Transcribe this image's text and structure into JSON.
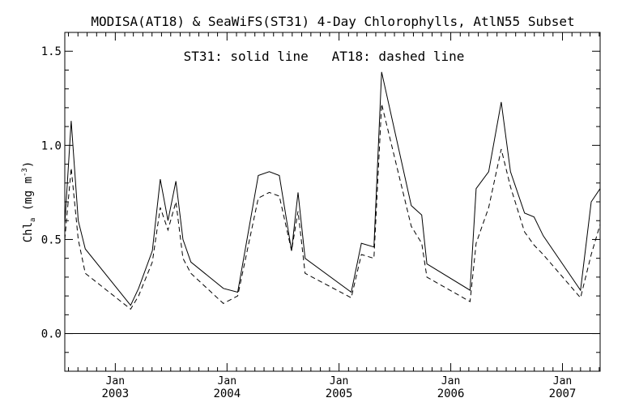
{
  "chart_data": {
    "type": "line",
    "title": "MODISA(AT18) & SeaWiFS(ST31) 4-Day Chlorophylls, AtlN55 Subset",
    "annotation": "ST31: solid line   AT18: dashed line",
    "ylabel": {
      "main": "Chl",
      "sub": "a",
      "unit_pre": "(mg m",
      "unit_sup": "-3",
      "unit_post": ")"
    },
    "ylim": [
      -0.2,
      1.6
    ],
    "xlim": [
      "2002-07-20",
      "2007-05-04"
    ],
    "yticks": [
      0.0,
      0.5,
      1.0,
      1.5
    ],
    "ytick_labels": [
      "0.0",
      "0.5",
      "1.0",
      "1.5"
    ],
    "xticks": [
      {
        "date": "2003-01-01",
        "month": "Jan",
        "year": "2003"
      },
      {
        "date": "2004-01-01",
        "month": "Jan",
        "year": "2004"
      },
      {
        "date": "2005-01-01",
        "month": "Jan",
        "year": "2005"
      },
      {
        "date": "2006-01-01",
        "month": "Jan",
        "year": "2006"
      },
      {
        "date": "2007-01-01",
        "month": "Jan",
        "year": "2007"
      }
    ],
    "reference_line": 0.0,
    "series": [
      {
        "name": "ST31",
        "style": "solid",
        "points": [
          [
            "2002-07-20",
            0.58
          ],
          [
            "2002-08-10",
            1.13
          ],
          [
            "2002-09-02",
            0.6
          ],
          [
            "2002-09-25",
            0.45
          ],
          [
            "2003-02-20",
            0.15
          ],
          [
            "2003-03-18",
            0.24
          ],
          [
            "2003-05-02",
            0.44
          ],
          [
            "2003-05-28",
            0.82
          ],
          [
            "2003-06-22",
            0.6
          ],
          [
            "2003-07-18",
            0.81
          ],
          [
            "2003-08-10",
            0.5
          ],
          [
            "2003-09-05",
            0.38
          ],
          [
            "2003-12-20",
            0.24
          ],
          [
            "2004-02-05",
            0.22
          ],
          [
            "2004-04-12",
            0.84
          ],
          [
            "2004-05-18",
            0.86
          ],
          [
            "2004-06-20",
            0.84
          ],
          [
            "2004-07-30",
            0.44
          ],
          [
            "2004-08-20",
            0.75
          ],
          [
            "2004-09-12",
            0.4
          ],
          [
            "2005-02-10",
            0.22
          ],
          [
            "2005-03-15",
            0.48
          ],
          [
            "2005-04-25",
            0.46
          ],
          [
            "2005-05-20",
            1.39
          ],
          [
            "2005-08-25",
            0.68
          ],
          [
            "2005-09-28",
            0.63
          ],
          [
            "2005-10-15",
            0.37
          ],
          [
            "2006-03-05",
            0.23
          ],
          [
            "2006-03-25",
            0.77
          ],
          [
            "2006-05-05",
            0.86
          ],
          [
            "2006-06-15",
            1.23
          ],
          [
            "2006-07-15",
            0.86
          ],
          [
            "2006-08-30",
            0.64
          ],
          [
            "2006-09-30",
            0.62
          ],
          [
            "2006-10-30",
            0.52
          ],
          [
            "2007-03-01",
            0.23
          ],
          [
            "2007-04-05",
            0.7
          ],
          [
            "2007-05-04",
            0.77
          ]
        ]
      },
      {
        "name": "AT18",
        "style": "dashed",
        "points": [
          [
            "2002-07-20",
            0.5
          ],
          [
            "2002-08-10",
            0.88
          ],
          [
            "2002-09-02",
            0.5
          ],
          [
            "2002-09-25",
            0.32
          ],
          [
            "2003-02-20",
            0.13
          ],
          [
            "2003-03-18",
            0.2
          ],
          [
            "2003-05-02",
            0.38
          ],
          [
            "2003-05-28",
            0.67
          ],
          [
            "2003-06-22",
            0.55
          ],
          [
            "2003-07-18",
            0.7
          ],
          [
            "2003-08-10",
            0.4
          ],
          [
            "2003-09-05",
            0.32
          ],
          [
            "2003-12-20",
            0.16
          ],
          [
            "2004-02-05",
            0.2
          ],
          [
            "2004-04-12",
            0.72
          ],
          [
            "2004-05-18",
            0.75
          ],
          [
            "2004-06-20",
            0.73
          ],
          [
            "2004-07-30",
            0.44
          ],
          [
            "2004-08-20",
            0.65
          ],
          [
            "2004-09-12",
            0.32
          ],
          [
            "2005-02-10",
            0.19
          ],
          [
            "2005-03-15",
            0.42
          ],
          [
            "2005-04-25",
            0.4
          ],
          [
            "2005-05-20",
            1.22
          ],
          [
            "2005-08-25",
            0.57
          ],
          [
            "2005-09-28",
            0.48
          ],
          [
            "2005-10-15",
            0.3
          ],
          [
            "2006-03-05",
            0.17
          ],
          [
            "2006-03-25",
            0.48
          ],
          [
            "2006-05-05",
            0.67
          ],
          [
            "2006-06-15",
            0.98
          ],
          [
            "2006-07-15",
            0.78
          ],
          [
            "2006-08-30",
            0.54
          ],
          [
            "2006-09-30",
            0.47
          ],
          [
            "2006-10-30",
            0.42
          ],
          [
            "2007-03-01",
            0.19
          ],
          [
            "2007-04-05",
            0.42
          ],
          [
            "2007-05-04",
            0.58
          ]
        ]
      }
    ]
  }
}
